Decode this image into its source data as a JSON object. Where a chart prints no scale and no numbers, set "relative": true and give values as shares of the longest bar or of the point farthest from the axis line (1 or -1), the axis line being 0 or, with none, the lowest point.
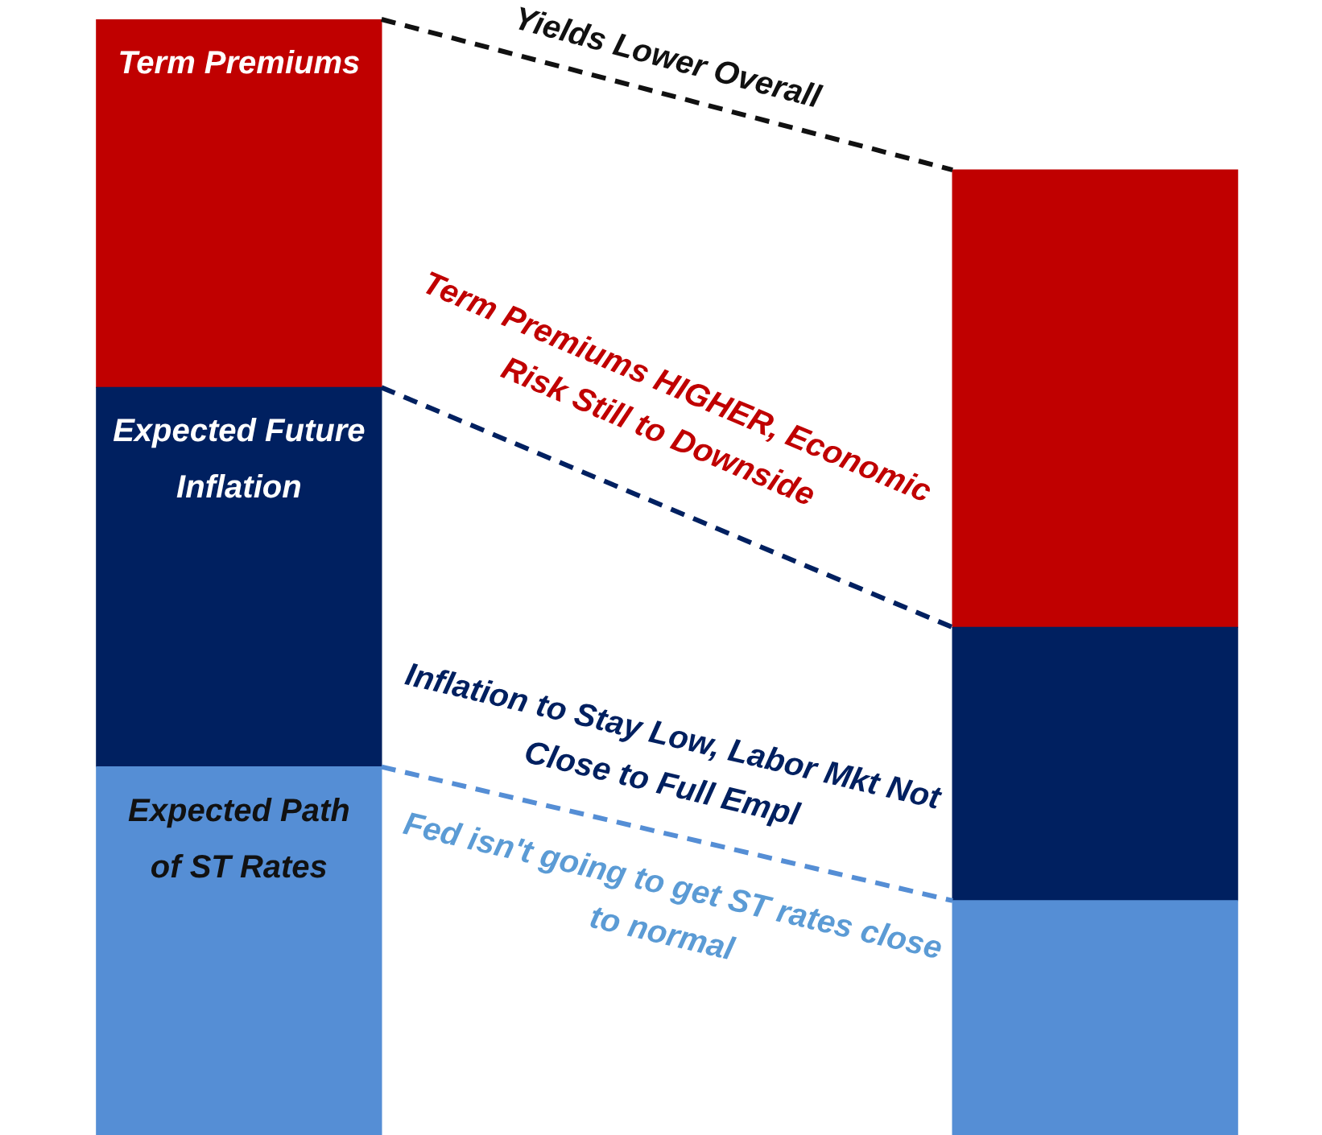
{
  "chart_data": {
    "type": "bar",
    "stacked": true,
    "relative": true,
    "categories": [
      null,
      null
    ],
    "series": [
      {
        "name": "Expected Path of ST Rates",
        "color": "#558ed5",
        "values": [
          0.33,
          0.21
        ]
      },
      {
        "name": "Expected Future Inflation",
        "color": "#002060",
        "values": [
          0.34,
          0.245
        ]
      },
      {
        "name": "Term Premiums",
        "color": "#c00000",
        "values": [
          0.33,
          0.41
        ]
      }
    ],
    "annotations": [
      "Yields Lower Overall",
      "Term Premiums HIGHER, Economic Risk Still to Downside",
      "Inflation to Stay Low, Labor Mkt Not Close to Full Empl",
      "Fed isn't going to get ST rates close to normal"
    ]
  }
}
